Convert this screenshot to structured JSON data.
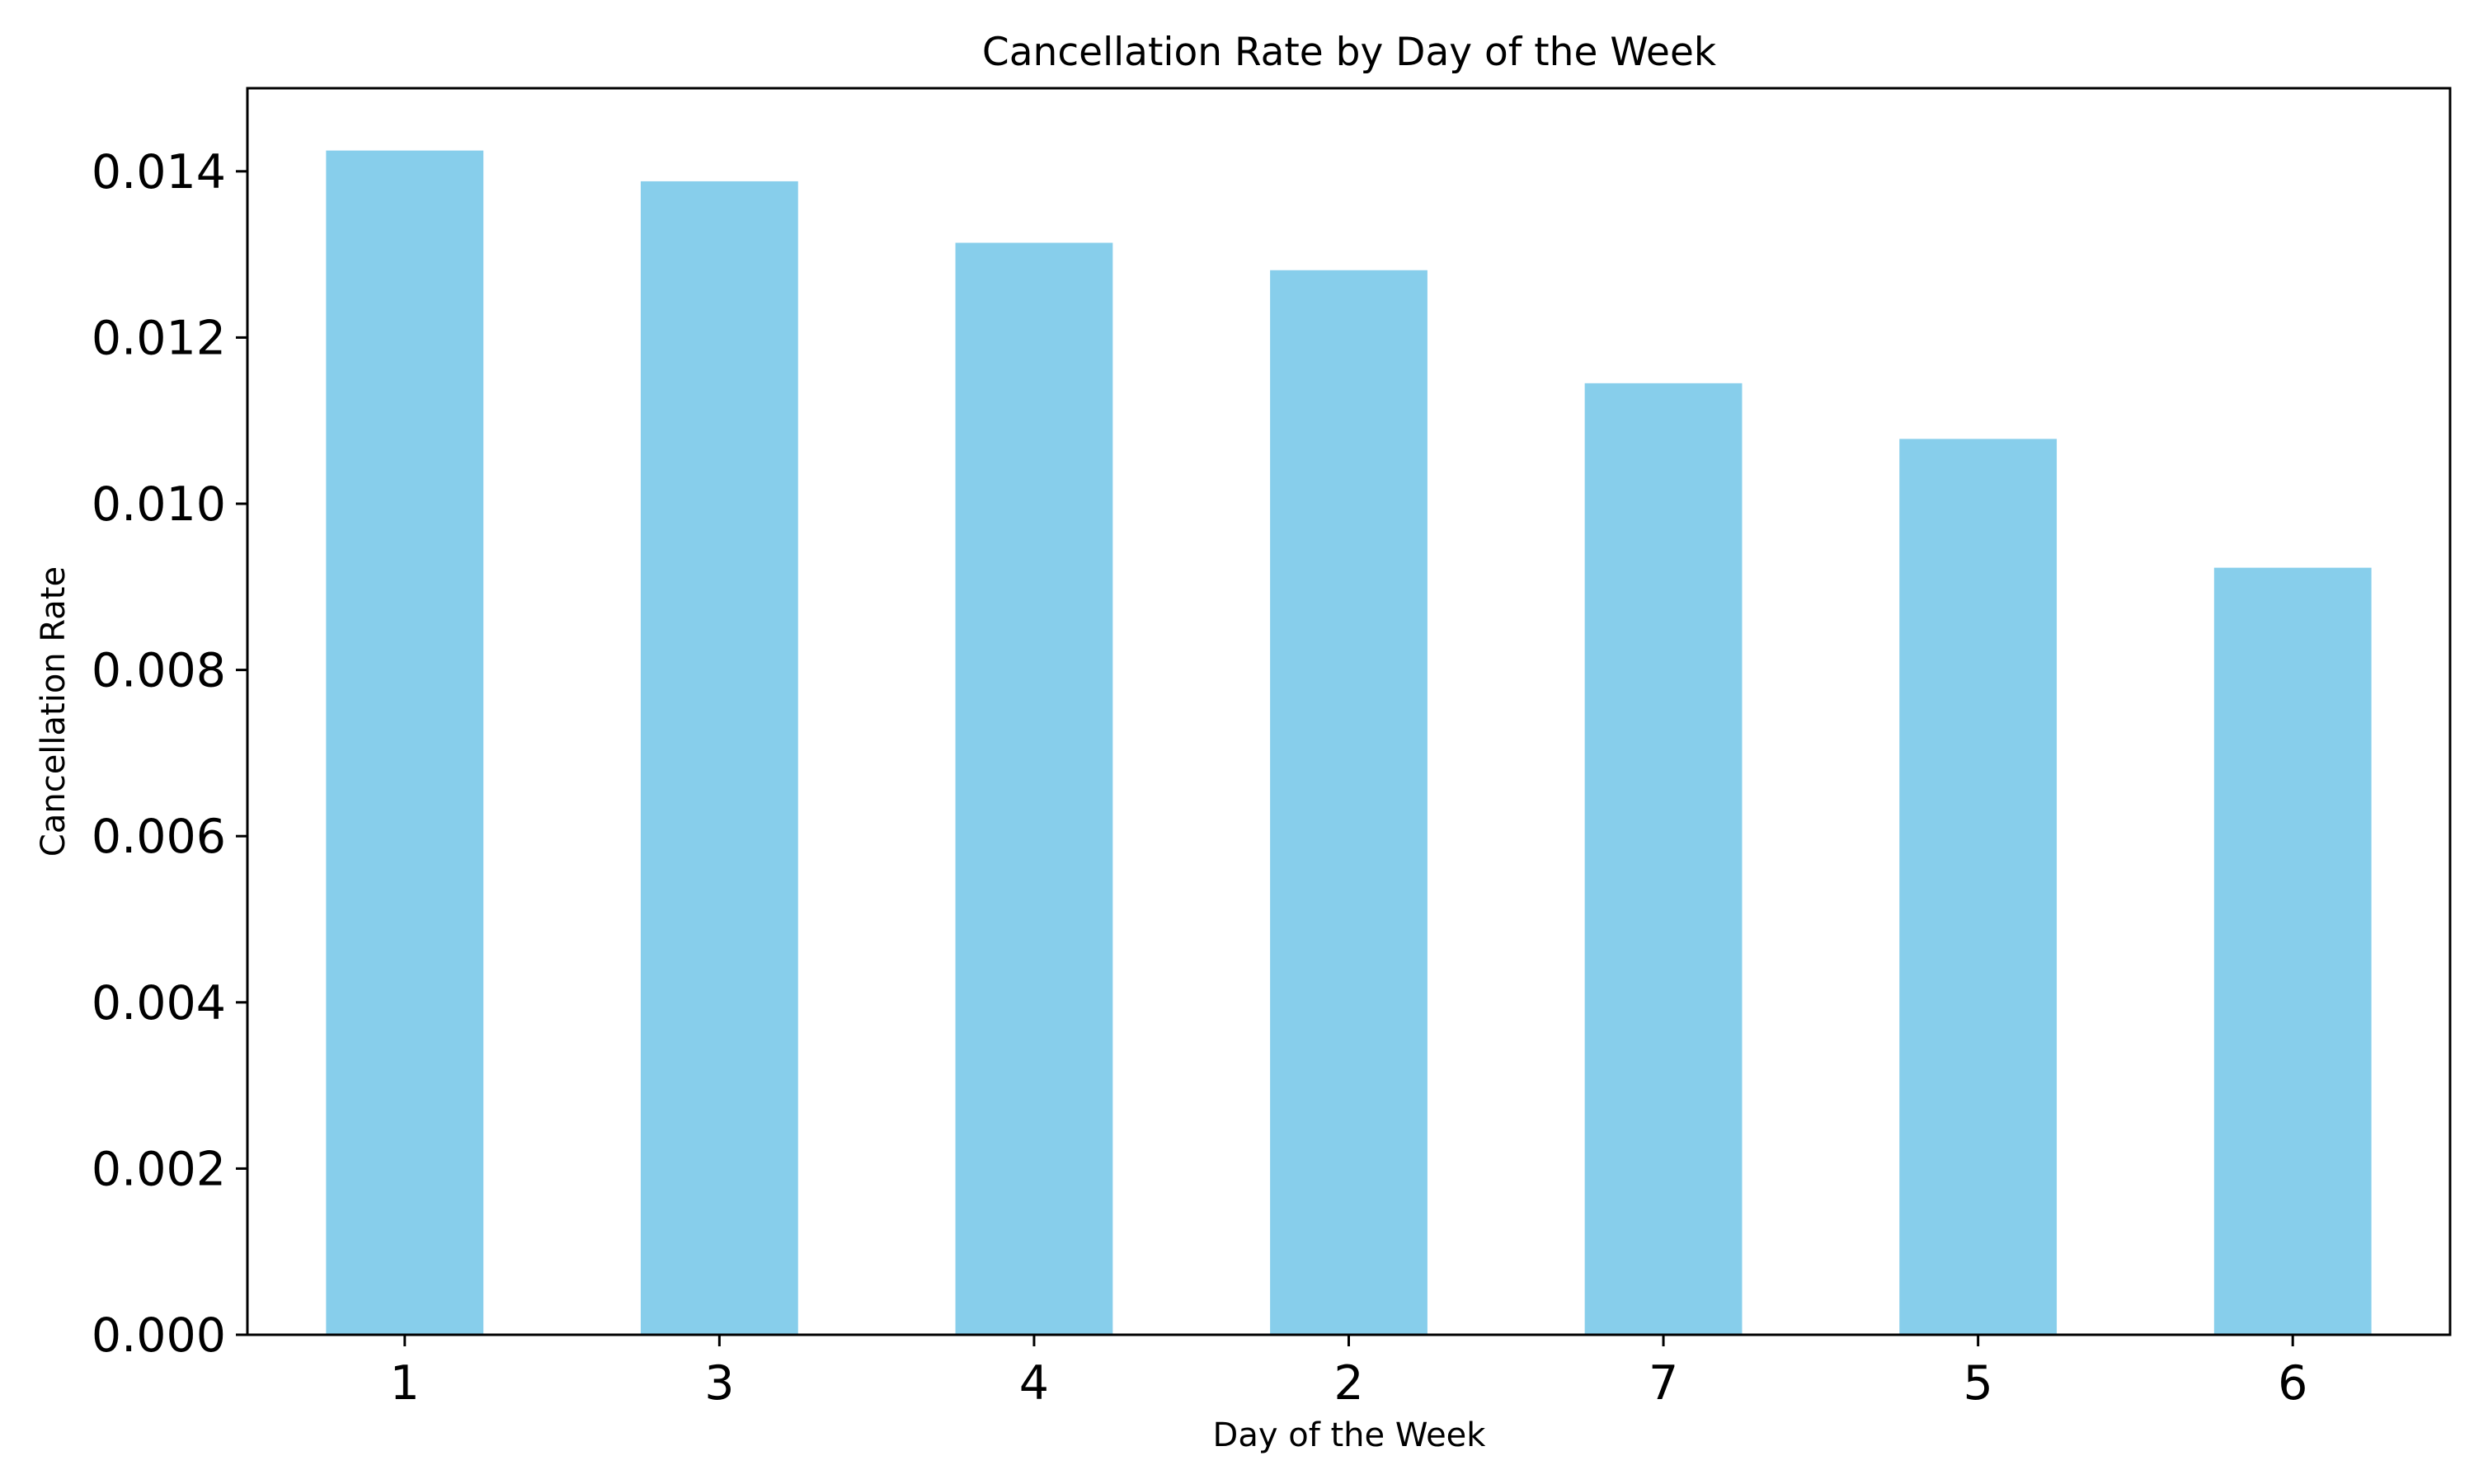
{
  "chart_data": {
    "type": "bar",
    "title": "Cancellation Rate by Day of the Week",
    "xlabel": "Day of the Week",
    "ylabel": "Cancellation Rate",
    "categories": [
      "1",
      "3",
      "4",
      "2",
      "7",
      "5",
      "6"
    ],
    "values": [
      0.01425,
      0.01388,
      0.01314,
      0.01281,
      0.01145,
      0.01078,
      0.00923
    ],
    "ylim": [
      0,
      0.015
    ],
    "yticks": [
      "0.000",
      "0.002",
      "0.004",
      "0.006",
      "0.008",
      "0.010",
      "0.012",
      "0.014"
    ],
    "grid": false,
    "legend": "none",
    "bar_color": "#87CEEB",
    "axis_color": "#000000"
  }
}
